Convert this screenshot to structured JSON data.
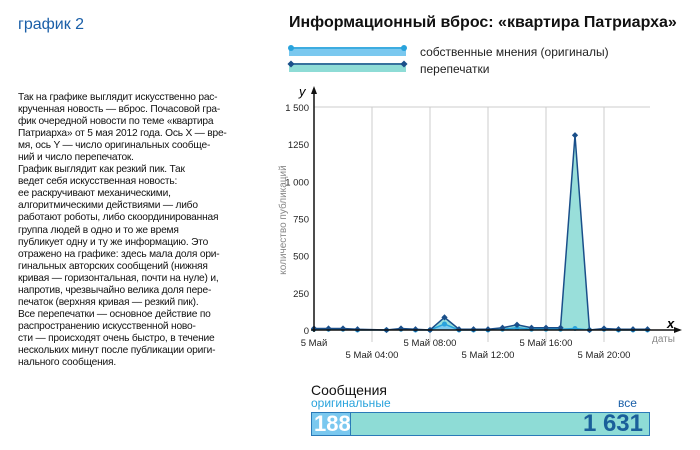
{
  "header": {
    "label": "график 2",
    "title": "Информационный вброс: «квартира Патриарха»"
  },
  "description": "Так на графике выглядит искусственно рас-\nкрученная новость — вброс. Почасовой гра-\nфик очередной новости по теме «квартира\nПатриарха» от 5 мая 2012 года. Ось X — вре-\nмя, ось Y — число оригинальных сообще-\nний и число перепечаток.\nГрафик выглядит как резкий пик. Так\nведет себя искусственная новость:\nее раскручивают механическими,\nалгоритмическими действиями — либо\nработают роботы, либо скоординированная\nгруппа людей в одно и то же время\nпубликует одну и ту же информацию. Это\nотражено на графике: здесь мала доля ори-\nгинальных авторских сообщений (нижняя\nкривая — горизонтальная, почти на нуле) и,\nнапротив, чрезвычайно велика доля пере-\nпечаток (верхняя кривая — резкий пик).\nВсе перепечатки — основное действие по\nраспространению искусственной ново-\nсти — происходят очень быстро, в течение\nнескольких минут после публикации ориги-\nнального сообщения.",
  "chart_data": {
    "type": "area",
    "title": "Информационный вброс: «квартира Патриарха»",
    "xlabel": "даты",
    "ylabel": "количество публикаций",
    "x_axis_letter": "x",
    "y_axis_letter": "y",
    "ylim": [
      0,
      1500
    ],
    "yticks": [
      {
        "v": 0,
        "l": "0"
      },
      {
        "v": 250,
        "l": "250"
      },
      {
        "v": 500,
        "l": "500"
      },
      {
        "v": 750,
        "l": "750"
      },
      {
        "v": 1000,
        "l": "1 000"
      },
      {
        "v": 1250,
        "l": "1250"
      },
      {
        "v": 1500,
        "l": "1 500"
      }
    ],
    "xticks": [
      {
        "h": 0,
        "l": "5 Май",
        "row": 0
      },
      {
        "h": 4,
        "l": "5 Май 04:00",
        "row": 1
      },
      {
        "h": 8,
        "l": "5 Май  08:00",
        "row": 0
      },
      {
        "h": 12,
        "l": "5 Май  12:00",
        "row": 1
      },
      {
        "h": 16,
        "l": "5 Май  16:00",
        "row": 0
      },
      {
        "h": 20,
        "l": "5 Май  20:00",
        "row": 1
      }
    ],
    "x_hours": [
      0,
      1,
      2,
      3,
      5,
      6,
      7,
      8,
      9,
      10,
      11,
      12,
      13,
      14,
      15,
      16,
      17,
      18,
      19,
      20,
      21,
      22,
      23
    ],
    "series": [
      {
        "name": "собственные мнения (оригиналы)",
        "color": "#29a3dc",
        "fill": "#7ac8ef",
        "values": [
          5,
          5,
          5,
          0,
          0,
          5,
          0,
          0,
          40,
          0,
          0,
          0,
          5,
          15,
          5,
          5,
          5,
          10,
          0,
          5,
          0,
          0,
          0
        ]
      },
      {
        "name": "перепечатки",
        "color": "#1a4f8a",
        "fill": "#8edcd6",
        "values": [
          10,
          10,
          10,
          5,
          0,
          10,
          5,
          0,
          85,
          5,
          5,
          5,
          15,
          35,
          15,
          15,
          15,
          1310,
          0,
          10,
          5,
          5,
          5
        ]
      }
    ]
  },
  "summary": {
    "title": "Сообщения",
    "originals_label": "оригинальные",
    "all_label": "все",
    "originals": "188",
    "all": "1 631",
    "originals_value": 188,
    "all_value": 1631
  }
}
